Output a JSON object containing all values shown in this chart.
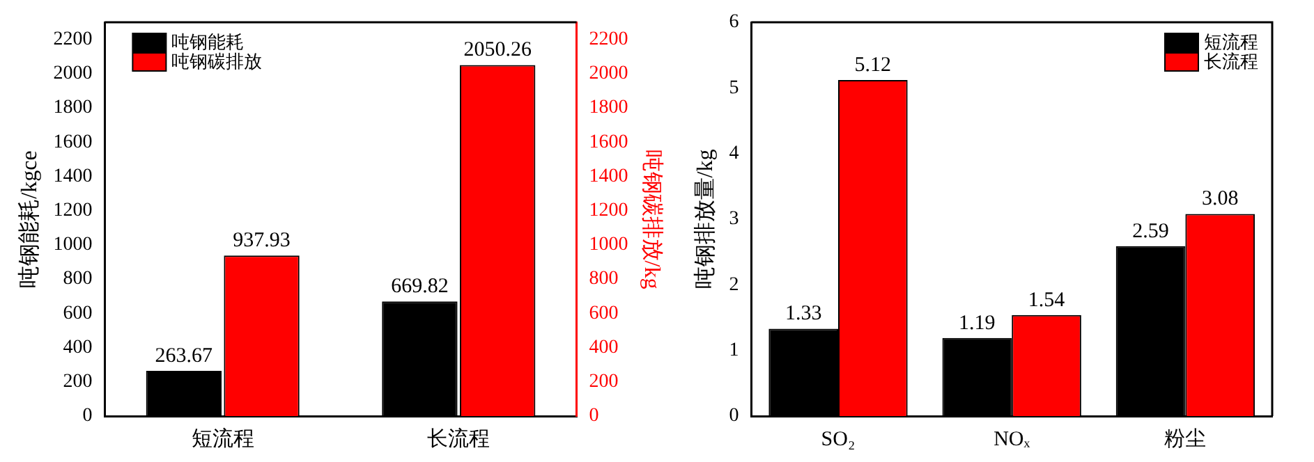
{
  "chart_data": [
    {
      "type": "bar",
      "categories": [
        "短流程",
        "长流程"
      ],
      "ylabel": "吨钢能耗/kgce",
      "y2label": "吨钢碳排放/kg",
      "series": [
        {
          "name": "吨钢能耗",
          "color": "#000000",
          "values": [
            263.67,
            669.82
          ]
        },
        {
          "name": "吨钢碳排放",
          "color": "#ff0000",
          "values": [
            937.93,
            2050.26
          ],
          "axis": "y2"
        }
      ],
      "ylim": [
        0,
        2300
      ],
      "yticks": [
        0,
        200,
        400,
        600,
        800,
        1000,
        1200,
        1400,
        1600,
        1800,
        2000,
        2200
      ],
      "y2lim": [
        0,
        2300
      ],
      "y2ticks": [
        0,
        200,
        400,
        600,
        800,
        1000,
        1200,
        1400,
        1600,
        1800,
        2000,
        2200
      ],
      "data_labels": true,
      "legend": "top left",
      "grid": false
    },
    {
      "type": "bar",
      "categories": [
        "SO₂",
        "NOₓ",
        "粉尘"
      ],
      "ylabel": "吨钢排放量/kg",
      "series": [
        {
          "name": "短流程",
          "color": "#000000",
          "values": [
            1.33,
            1.19,
            2.59
          ]
        },
        {
          "name": "长流程",
          "color": "#ff0000",
          "values": [
            5.12,
            1.54,
            3.08
          ]
        }
      ],
      "ylim": [
        0,
        6
      ],
      "yticks": [
        0,
        1,
        2,
        3,
        4,
        5,
        6
      ],
      "data_labels": true,
      "legend": "top right",
      "grid": false
    }
  ]
}
